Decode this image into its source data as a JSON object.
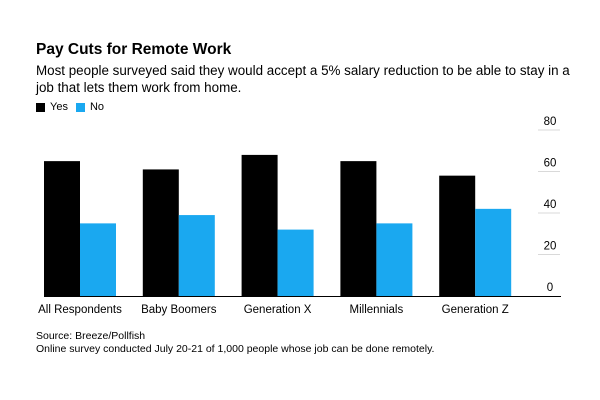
{
  "title": "Pay Cuts for Remote Work",
  "subtitle": "Most people surveyed said they would accept a 5% salary reduction to be able to stay in a job that lets them work from home.",
  "footer": {
    "source": "Source: Breeze/Pollfish",
    "note": "Online survey conducted July 20-21 of 1,000 people whose job can be done remotely."
  },
  "colors": {
    "yes": "#000000",
    "no": "#1aa8f0",
    "grid": "#d9d9d9",
    "axis": "#000000"
  },
  "chart_data": {
    "type": "bar",
    "categories": [
      "All Respondents",
      "Baby Boomers",
      "Generation X",
      "Millennials",
      "Generation Z"
    ],
    "series": [
      {
        "name": "Yes",
        "values": [
          65,
          61,
          68,
          65,
          58
        ]
      },
      {
        "name": "No",
        "values": [
          35,
          39,
          32,
          35,
          42
        ]
      }
    ],
    "ylim": [
      0,
      80
    ],
    "yticks": [
      0,
      20,
      40,
      60,
      80
    ],
    "yaxis_side": "right",
    "grid": false,
    "legend_position": "top-left"
  }
}
